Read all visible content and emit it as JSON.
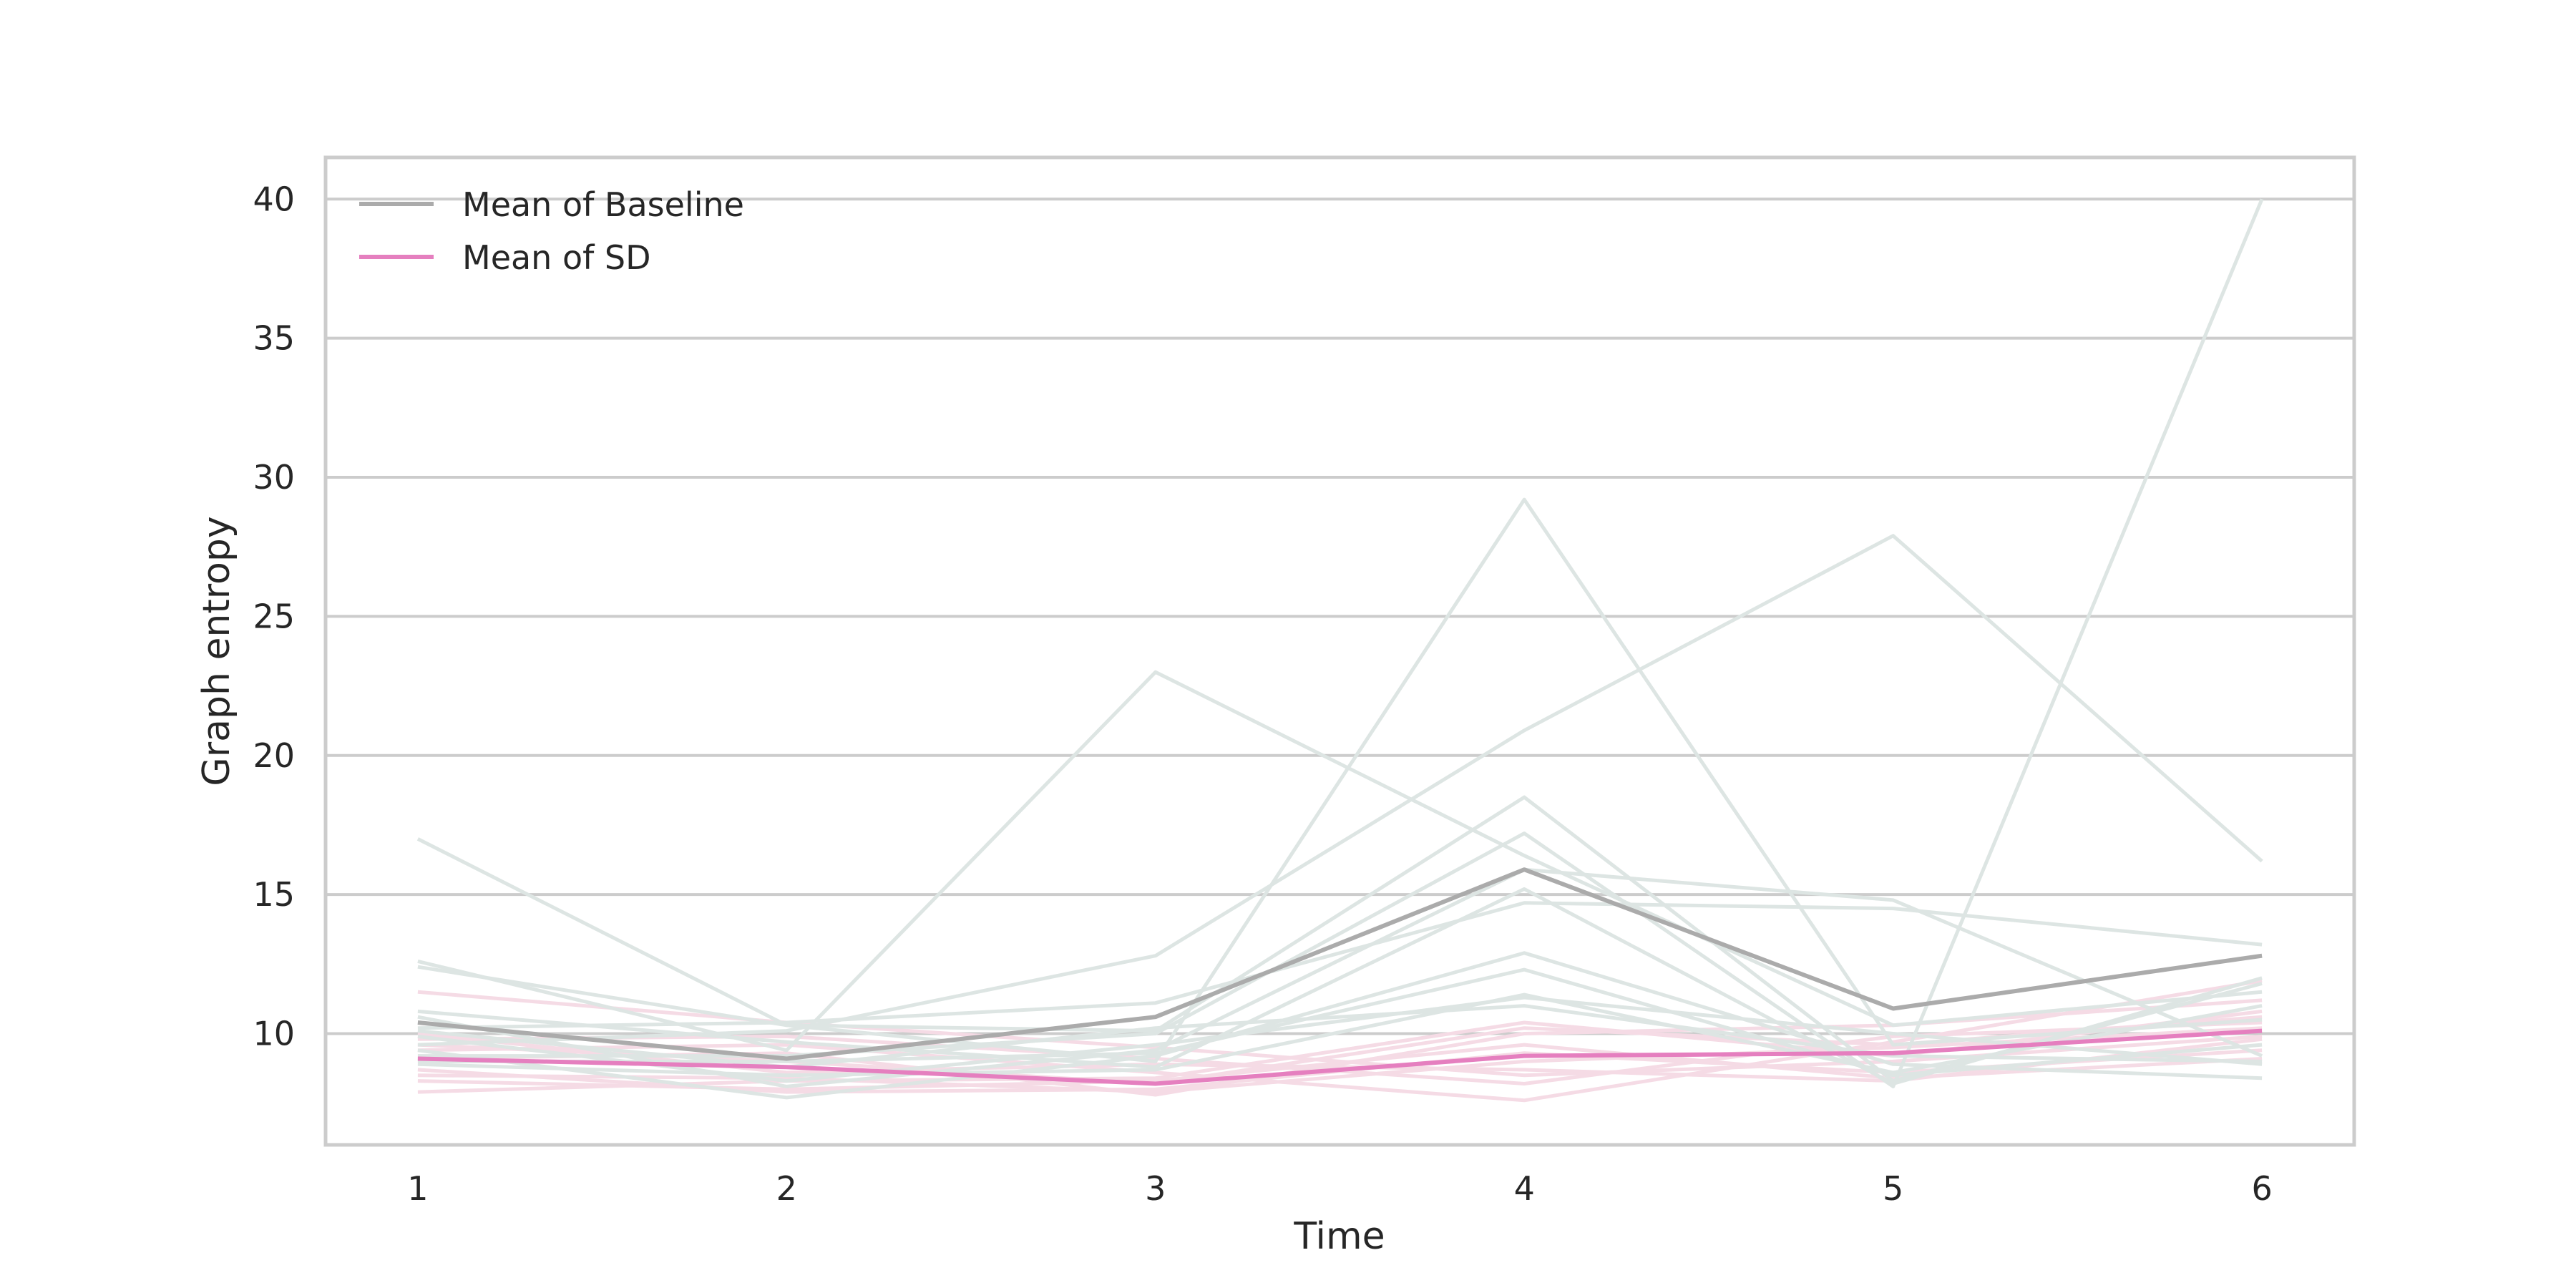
{
  "chart_data": {
    "type": "line",
    "title": "",
    "xlabel": "Time",
    "ylabel": "Graph entropy",
    "x": [
      1,
      2,
      3,
      4,
      5,
      6
    ],
    "xlim": [
      0.75,
      6.25
    ],
    "ylim": [
      6,
      41.5
    ],
    "x_ticks": [
      1,
      2,
      3,
      4,
      5,
      6
    ],
    "y_ticks": [
      10,
      15,
      20,
      25,
      30,
      35,
      40
    ],
    "grid": "horizontal",
    "legend_position": "top-left",
    "colors": {
      "baseline_individual": "#dde5e3",
      "sd_individual": "#f5dbe5",
      "baseline_mean": "#ababab",
      "sd_mean": "#e57fbf",
      "grid": "#cccccc",
      "frame": "#cccccc"
    },
    "series": [
      {
        "group": "SD",
        "values": [
          9.6,
          9.0,
          8.2,
          10.2,
          9.6,
          10.6
        ]
      },
      {
        "group": "SD",
        "values": [
          8.5,
          8.4,
          7.9,
          9.0,
          9.5,
          10.2
        ]
      },
      {
        "group": "SD",
        "values": [
          7.9,
          8.3,
          8.4,
          10.4,
          9.2,
          10.8
        ]
      },
      {
        "group": "SD",
        "values": [
          11.5,
          10.4,
          9.5,
          8.5,
          9.0,
          9.9
        ]
      },
      {
        "group": "SD",
        "values": [
          9.4,
          9.6,
          8.6,
          7.6,
          9.7,
          11.9
        ]
      },
      {
        "group": "SD",
        "values": [
          8.7,
          7.9,
          8.0,
          9.3,
          8.6,
          9.4
        ]
      },
      {
        "group": "SD",
        "values": [
          9.1,
          9.3,
          7.8,
          10.0,
          10.3,
          11.2
        ]
      },
      {
        "group": "SD",
        "values": [
          10.0,
          8.6,
          8.9,
          8.7,
          8.3,
          9.8
        ]
      },
      {
        "group": "SD",
        "values": [
          8.3,
          8.0,
          8.3,
          9.6,
          8.4,
          9.1
        ]
      },
      {
        "group": "SD",
        "values": [
          9.8,
          9.9,
          9.1,
          8.2,
          9.9,
          10.4
        ]
      },
      {
        "group": "Baseline",
        "values": [
          17.0,
          10.3,
          10.1,
          18.5,
          8.3,
          11.8
        ]
      },
      {
        "group": "Baseline",
        "values": [
          12.6,
          9.4,
          23.0,
          16.4,
          10.3,
          11.5
        ]
      },
      {
        "group": "Baseline",
        "values": [
          12.4,
          10.3,
          9.0,
          29.2,
          9.6,
          10.5
        ]
      },
      {
        "group": "Baseline",
        "values": [
          9.6,
          10.1,
          12.8,
          20.9,
          27.9,
          16.2
        ]
      },
      {
        "group": "Baseline",
        "values": [
          10.6,
          8.1,
          9.4,
          15.9,
          14.8,
          9.2
        ]
      },
      {
        "group": "Baseline",
        "values": [
          9.2,
          9.2,
          10.0,
          17.2,
          8.1,
          40.0
        ]
      },
      {
        "group": "Baseline",
        "values": [
          10.2,
          10.4,
          11.1,
          14.7,
          14.5,
          13.2
        ]
      },
      {
        "group": "Baseline",
        "values": [
          8.9,
          8.5,
          8.7,
          11.4,
          8.6,
          11.0
        ]
      },
      {
        "group": "Baseline",
        "values": [
          9.4,
          7.7,
          9.2,
          12.9,
          8.9,
          8.4
        ]
      },
      {
        "group": "Baseline",
        "values": [
          10.8,
          9.7,
          8.8,
          15.2,
          8.2,
          12.0
        ]
      },
      {
        "group": "Baseline",
        "values": [
          9.9,
          8.3,
          9.6,
          11.3,
          10.0,
          8.9
        ]
      },
      {
        "group": "Baseline",
        "values": [
          9.0,
          9.0,
          9.3,
          12.3,
          8.5,
          9.6
        ]
      },
      {
        "group": "Baseline",
        "values": [
          10.1,
          8.8,
          10.2,
          11.0,
          9.2,
          9.0
        ]
      },
      {
        "group": "Baseline mean",
        "name": "Mean of Baseline",
        "values": [
          10.4,
          9.1,
          10.6,
          15.9,
          10.9,
          12.8
        ]
      },
      {
        "group": "SD mean",
        "name": "Mean of SD",
        "values": [
          9.1,
          8.8,
          8.2,
          9.2,
          9.3,
          10.1
        ]
      }
    ],
    "legend": [
      {
        "label": "Mean of Baseline",
        "color": "#ababab"
      },
      {
        "label": "Mean of SD",
        "color": "#e57fbf"
      }
    ]
  }
}
